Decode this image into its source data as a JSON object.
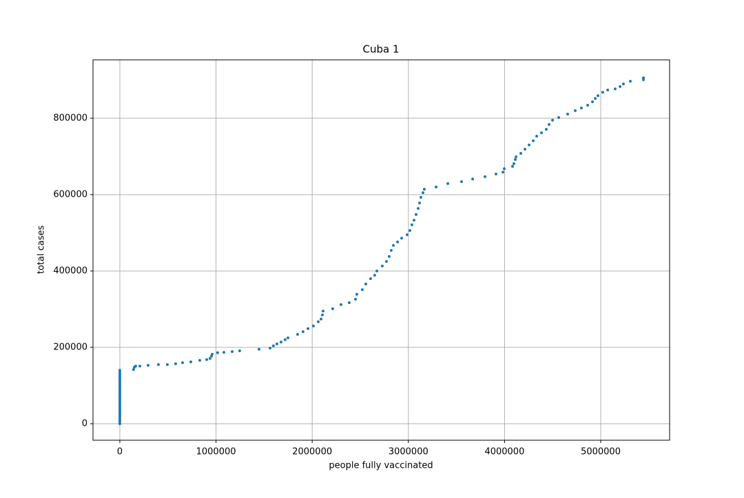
{
  "chart_data": {
    "type": "scatter",
    "title": "Cuba 1",
    "xlabel": "people fully vaccinated",
    "ylabel": "total cases",
    "color": "#1f77b4",
    "grid": true,
    "xlim": [
      -279000,
      5716000
    ],
    "ylim": [
      -43200,
      953000
    ],
    "xticks": [
      0,
      1000000,
      2000000,
      3000000,
      4000000,
      5000000
    ],
    "yticks": [
      0,
      200000,
      400000,
      600000,
      800000
    ],
    "x": [
      0,
      0,
      0,
      0,
      0,
      0,
      0,
      0,
      0,
      0,
      0,
      0,
      0,
      0,
      0,
      0,
      0,
      0,
      0,
      0,
      0,
      0,
      0,
      0,
      0,
      0,
      0,
      0,
      0,
      143000,
      150000,
      165000,
      208000,
      294000,
      401000,
      494000,
      580000,
      652000,
      738000,
      831000,
      903000,
      938000,
      953000,
      960000,
      1017000,
      1082000,
      1168000,
      1246000,
      1447000,
      1562000,
      1597000,
      1633000,
      1676000,
      1719000,
      1748000,
      1848000,
      1905000,
      1956000,
      2013000,
      2063000,
      2092000,
      2106000,
      2113000,
      2213000,
      2300000,
      2385000,
      2450000,
      2464000,
      2521000,
      2557000,
      2607000,
      2650000,
      2672000,
      2729000,
      2772000,
      2801000,
      2822000,
      2844000,
      2887000,
      2930000,
      2987000,
      3016000,
      3037000,
      3059000,
      3080000,
      3102000,
      3116000,
      3130000,
      3152000,
      3166000,
      3288000,
      3410000,
      3553000,
      3668000,
      3797000,
      3911000,
      3983000,
      3997000,
      4083000,
      4097000,
      4112000,
      4119000,
      4169000,
      4212000,
      4255000,
      4298000,
      4334000,
      4384000,
      4434000,
      4463000,
      4499000,
      4563000,
      4656000,
      4735000,
      4799000,
      4864000,
      4914000,
      4943000,
      4971000,
      5021000,
      5072000,
      5150000,
      5201000,
      5236000,
      5308000,
      5444000,
      5444000
    ],
    "y": [
      0,
      5000,
      10000,
      15000,
      20000,
      25000,
      30000,
      35000,
      40000,
      45000,
      50000,
      55000,
      60000,
      65000,
      70000,
      75000,
      80000,
      85000,
      90000,
      95000,
      100000,
      105000,
      110000,
      115000,
      120000,
      125000,
      130000,
      135000,
      140000,
      142000,
      148000,
      151000,
      151000,
      153000,
      155000,
      155000,
      157000,
      160000,
      162000,
      166000,
      168000,
      171000,
      177000,
      182000,
      186000,
      187000,
      189000,
      191000,
      195000,
      198000,
      204000,
      209000,
      214000,
      220000,
      225000,
      234000,
      241000,
      249000,
      256000,
      267000,
      274000,
      285000,
      295000,
      301000,
      312000,
      317000,
      326000,
      339000,
      351000,
      366000,
      380000,
      389000,
      400000,
      413000,
      425000,
      438000,
      454000,
      467000,
      476000,
      486000,
      495000,
      506000,
      521000,
      533000,
      548000,
      564000,
      578000,
      593000,
      605000,
      614000,
      620000,
      629000,
      634000,
      641000,
      647000,
      654000,
      659000,
      668000,
      674000,
      681000,
      692000,
      699000,
      708000,
      719000,
      730000,
      741000,
      753000,
      762000,
      771000,
      784000,
      795000,
      802000,
      811000,
      820000,
      827000,
      834000,
      843000,
      852000,
      859000,
      868000,
      874000,
      877000,
      883000,
      890000,
      897000,
      901000,
      906000
    ]
  }
}
